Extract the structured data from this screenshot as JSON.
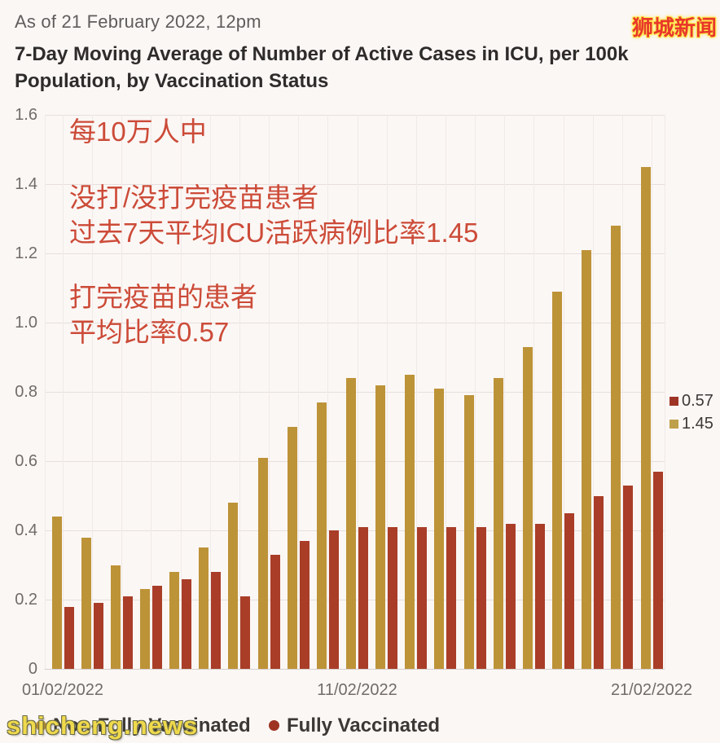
{
  "header": {
    "as_of": "As of 21 February 2022, 12pm",
    "title_line1": "7-Day Moving Average of Number of Active Cases in ICU, per 100k",
    "title_line2": "Population, by Vaccination Status",
    "logo": "狮城新闻"
  },
  "watermark": "shicheng.news",
  "chart_data": {
    "type": "bar",
    "title": "7-Day Moving Average of Number of Active Cases in ICU, per 100k Population, by Vaccination Status",
    "xlabel": "",
    "ylabel": "",
    "ylim": [
      0,
      1.6
    ],
    "grid": "both",
    "y_ticks": [
      0,
      0.2,
      0.4,
      0.6,
      0.8,
      1.0,
      1.2,
      1.4,
      1.6
    ],
    "y_tick_labels": [
      "0",
      "0.2",
      "0.4",
      "0.6",
      "0.8",
      "1.0",
      "1.2",
      "1.4",
      "1.6"
    ],
    "x": [
      "01/02/2022",
      "02/02/2022",
      "03/02/2022",
      "04/02/2022",
      "05/02/2022",
      "06/02/2022",
      "07/02/2022",
      "08/02/2022",
      "09/02/2022",
      "10/02/2022",
      "11/02/2022",
      "12/02/2022",
      "13/02/2022",
      "14/02/2022",
      "15/02/2022",
      "16/02/2022",
      "17/02/2022",
      "18/02/2022",
      "19/02/2022",
      "20/02/2022",
      "21/02/2022"
    ],
    "x_tick_indices": [
      0,
      10,
      20
    ],
    "series": [
      {
        "name": "Non-Fully Vaccinated",
        "color": "#BD9338",
        "values": [
          0.44,
          0.38,
          0.3,
          0.23,
          0.28,
          0.35,
          0.48,
          0.61,
          0.7,
          0.77,
          0.84,
          0.82,
          0.85,
          0.81,
          0.79,
          0.84,
          0.93,
          1.09,
          1.21,
          1.28,
          1.45
        ]
      },
      {
        "name": "Fully Vaccinated",
        "color": "#A93D28",
        "values": [
          0.18,
          0.19,
          0.21,
          0.24,
          0.26,
          0.28,
          0.21,
          0.33,
          0.37,
          0.4,
          0.41,
          0.41,
          0.41,
          0.41,
          0.41,
          0.42,
          0.42,
          0.45,
          0.5,
          0.53,
          0.57
        ]
      }
    ],
    "end_labels": [
      {
        "text": "0.57",
        "color": "#9E3425"
      },
      {
        "text": "1.45",
        "color": "#BFA04A"
      }
    ],
    "annotations": {
      "per_100k": "每10万人中",
      "nonvax_line1": "没打/没打完疫苗患者",
      "nonvax_line2": "过去7天平均ICU活跃病例比率1.45",
      "vax_line1": "打完疫苗的患者",
      "vax_line2": "平均比率0.57"
    },
    "legend_position": "bottom"
  }
}
